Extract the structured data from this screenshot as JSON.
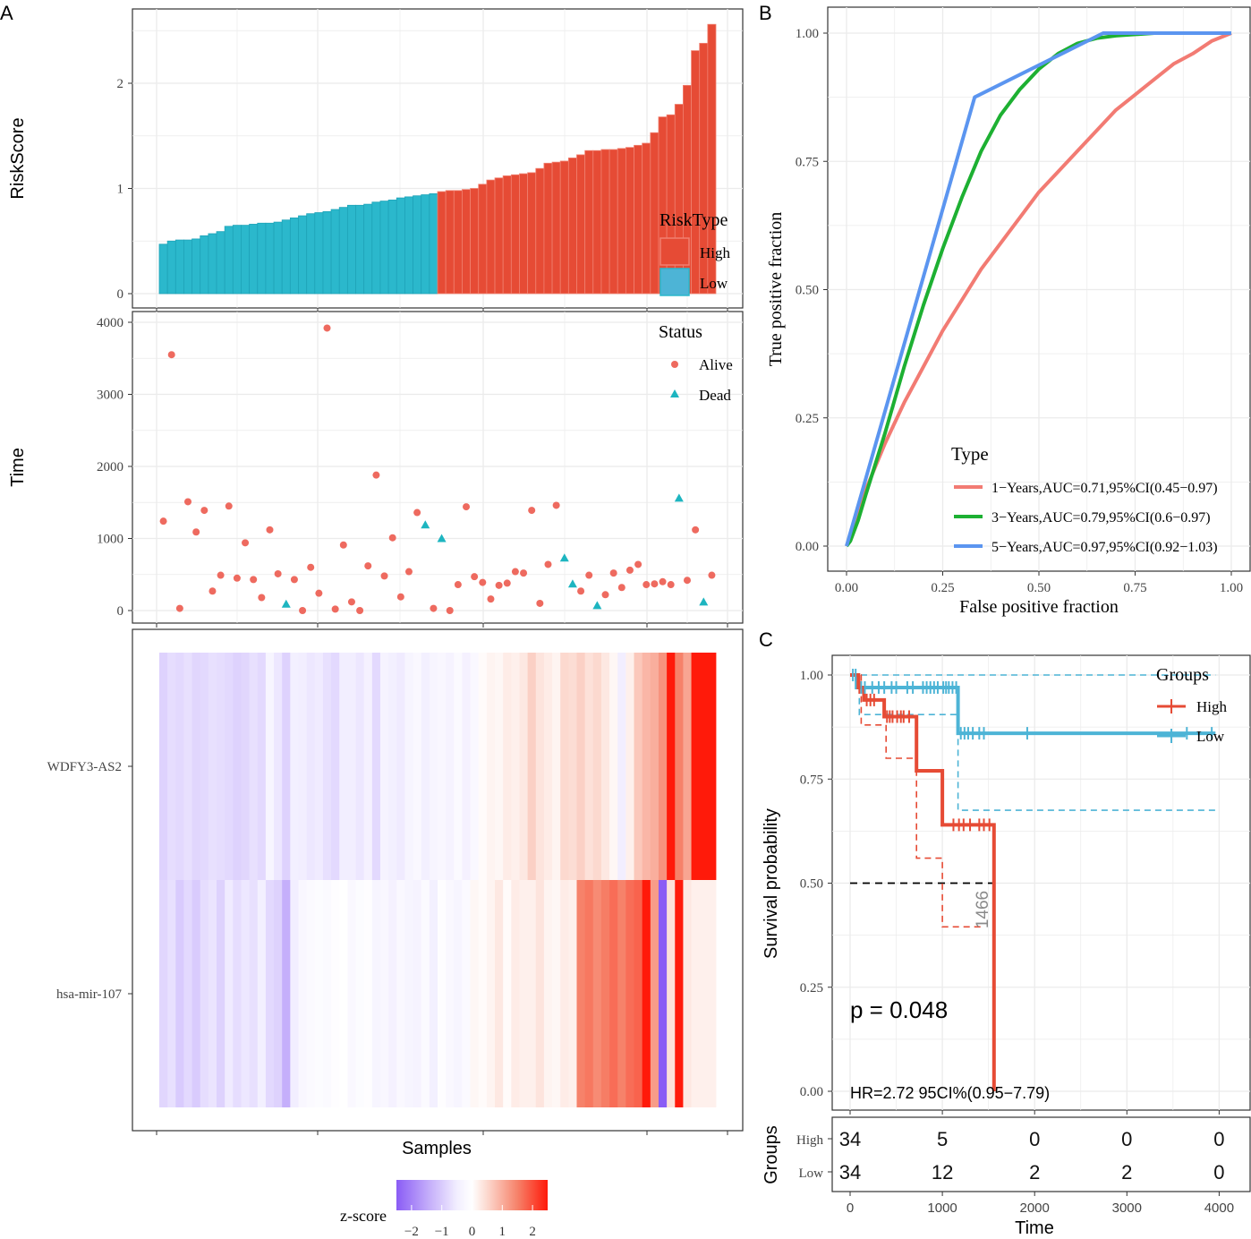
{
  "panel_labels": {
    "a": "A",
    "b": "B",
    "c": "C"
  },
  "colors": {
    "high": "#E64B35",
    "low": "#2BB8CC",
    "alive": "#EE6A5F",
    "dead": "#1DB5C0",
    "roc1": "#F27B73",
    "roc3": "#1DB032",
    "roc5": "#5B95F0",
    "km_high": "#E64B35",
    "km_low": "#4DB4D6",
    "grid": "#EBEBEB"
  },
  "chart_data": [
    {
      "id": "riskscore",
      "type": "bar",
      "title": "",
      "xlabel": "",
      "ylabel": "RiskScore",
      "ylim": [
        0,
        2.7
      ],
      "yticks": [
        0,
        1,
        2
      ],
      "legend": {
        "title": "RiskType",
        "entries": [
          "High",
          "Low"
        ],
        "position": "bottom-right"
      },
      "groups": [
        "Low",
        "Low",
        "Low",
        "Low",
        "Low",
        "Low",
        "Low",
        "Low",
        "Low",
        "Low",
        "Low",
        "Low",
        "Low",
        "Low",
        "Low",
        "Low",
        "Low",
        "Low",
        "Low",
        "Low",
        "Low",
        "Low",
        "Low",
        "Low",
        "Low",
        "Low",
        "Low",
        "Low",
        "Low",
        "Low",
        "Low",
        "Low",
        "Low",
        "Low",
        "High",
        "High",
        "High",
        "High",
        "High",
        "High",
        "High",
        "High",
        "High",
        "High",
        "High",
        "High",
        "High",
        "High",
        "High",
        "High",
        "High",
        "High",
        "High",
        "High",
        "High",
        "High",
        "High",
        "High",
        "High",
        "High",
        "High",
        "High",
        "High",
        "High",
        "High",
        "High",
        "High",
        "High"
      ],
      "values": [
        0.47,
        0.5,
        0.51,
        0.51,
        0.52,
        0.55,
        0.57,
        0.59,
        0.64,
        0.65,
        0.65,
        0.66,
        0.67,
        0.67,
        0.68,
        0.7,
        0.72,
        0.74,
        0.76,
        0.77,
        0.78,
        0.8,
        0.82,
        0.84,
        0.84,
        0.85,
        0.87,
        0.88,
        0.89,
        0.91,
        0.92,
        0.93,
        0.94,
        0.95,
        0.97,
        0.98,
        0.98,
        0.99,
        1.0,
        1.04,
        1.08,
        1.1,
        1.12,
        1.13,
        1.14,
        1.15,
        1.19,
        1.24,
        1.25,
        1.26,
        1.29,
        1.32,
        1.36,
        1.36,
        1.37,
        1.37,
        1.38,
        1.39,
        1.41,
        1.43,
        1.53,
        1.68,
        1.7,
        1.8,
        1.98,
        2.31,
        2.38,
        2.56
      ]
    },
    {
      "id": "survival-time",
      "type": "scatter",
      "xlabel": "",
      "ylabel": "Time",
      "ylim": [
        0,
        4000
      ],
      "yticks": [
        0,
        1000,
        2000,
        3000,
        4000
      ],
      "legend": {
        "title": "Status",
        "entries": [
          "Alive",
          "Dead"
        ],
        "position": "top-right"
      },
      "points": [
        {
          "x": 1,
          "y": 1240,
          "s": "Alive"
        },
        {
          "x": 2,
          "y": 3550,
          "s": "Alive"
        },
        {
          "x": 3,
          "y": 30,
          "s": "Alive"
        },
        {
          "x": 4,
          "y": 1510,
          "s": "Alive"
        },
        {
          "x": 5,
          "y": 1090,
          "s": "Alive"
        },
        {
          "x": 6,
          "y": 1390,
          "s": "Alive"
        },
        {
          "x": 7,
          "y": 270,
          "s": "Alive"
        },
        {
          "x": 8,
          "y": 490,
          "s": "Alive"
        },
        {
          "x": 9,
          "y": 1450,
          "s": "Alive"
        },
        {
          "x": 10,
          "y": 450,
          "s": "Alive"
        },
        {
          "x": 11,
          "y": 940,
          "s": "Alive"
        },
        {
          "x": 12,
          "y": 430,
          "s": "Alive"
        },
        {
          "x": 13,
          "y": 180,
          "s": "Alive"
        },
        {
          "x": 14,
          "y": 1120,
          "s": "Alive"
        },
        {
          "x": 15,
          "y": 510,
          "s": "Alive"
        },
        {
          "x": 16,
          "y": 90,
          "s": "Dead"
        },
        {
          "x": 17,
          "y": 430,
          "s": "Alive"
        },
        {
          "x": 18,
          "y": 0,
          "s": "Alive"
        },
        {
          "x": 19,
          "y": 600,
          "s": "Alive"
        },
        {
          "x": 20,
          "y": 240,
          "s": "Alive"
        },
        {
          "x": 21,
          "y": 3920,
          "s": "Alive"
        },
        {
          "x": 22,
          "y": 20,
          "s": "Alive"
        },
        {
          "x": 23,
          "y": 910,
          "s": "Alive"
        },
        {
          "x": 24,
          "y": 120,
          "s": "Alive"
        },
        {
          "x": 25,
          "y": 0,
          "s": "Alive"
        },
        {
          "x": 26,
          "y": 620,
          "s": "Alive"
        },
        {
          "x": 27,
          "y": 1880,
          "s": "Alive"
        },
        {
          "x": 28,
          "y": 480,
          "s": "Alive"
        },
        {
          "x": 29,
          "y": 1010,
          "s": "Alive"
        },
        {
          "x": 30,
          "y": 190,
          "s": "Alive"
        },
        {
          "x": 31,
          "y": 540,
          "s": "Alive"
        },
        {
          "x": 32,
          "y": 1360,
          "s": "Alive"
        },
        {
          "x": 33,
          "y": 1190,
          "s": "Dead"
        },
        {
          "x": 34,
          "y": 30,
          "s": "Alive"
        },
        {
          "x": 35,
          "y": 1000,
          "s": "Dead"
        },
        {
          "x": 36,
          "y": 0,
          "s": "Alive"
        },
        {
          "x": 37,
          "y": 360,
          "s": "Alive"
        },
        {
          "x": 38,
          "y": 1440,
          "s": "Alive"
        },
        {
          "x": 39,
          "y": 470,
          "s": "Alive"
        },
        {
          "x": 40,
          "y": 390,
          "s": "Alive"
        },
        {
          "x": 41,
          "y": 160,
          "s": "Alive"
        },
        {
          "x": 42,
          "y": 350,
          "s": "Alive"
        },
        {
          "x": 43,
          "y": 380,
          "s": "Alive"
        },
        {
          "x": 44,
          "y": 540,
          "s": "Alive"
        },
        {
          "x": 45,
          "y": 520,
          "s": "Alive"
        },
        {
          "x": 46,
          "y": 1390,
          "s": "Alive"
        },
        {
          "x": 47,
          "y": 100,
          "s": "Alive"
        },
        {
          "x": 48,
          "y": 640,
          "s": "Alive"
        },
        {
          "x": 49,
          "y": 1460,
          "s": "Alive"
        },
        {
          "x": 50,
          "y": 730,
          "s": "Dead"
        },
        {
          "x": 51,
          "y": 370,
          "s": "Dead"
        },
        {
          "x": 52,
          "y": 270,
          "s": "Alive"
        },
        {
          "x": 53,
          "y": 490,
          "s": "Alive"
        },
        {
          "x": 54,
          "y": 70,
          "s": "Dead"
        },
        {
          "x": 55,
          "y": 220,
          "s": "Alive"
        },
        {
          "x": 56,
          "y": 520,
          "s": "Alive"
        },
        {
          "x": 57,
          "y": 320,
          "s": "Alive"
        },
        {
          "x": 58,
          "y": 560,
          "s": "Alive"
        },
        {
          "x": 59,
          "y": 640,
          "s": "Alive"
        },
        {
          "x": 60,
          "y": 360,
          "s": "Alive"
        },
        {
          "x": 61,
          "y": 370,
          "s": "Alive"
        },
        {
          "x": 62,
          "y": 400,
          "s": "Alive"
        },
        {
          "x": 63,
          "y": 360,
          "s": "Alive"
        },
        {
          "x": 64,
          "y": 1560,
          "s": "Dead"
        },
        {
          "x": 65,
          "y": 420,
          "s": "Alive"
        },
        {
          "x": 66,
          "y": 1120,
          "s": "Alive"
        },
        {
          "x": 67,
          "y": 120,
          "s": "Dead"
        },
        {
          "x": 68,
          "y": 490,
          "s": "Alive"
        }
      ]
    },
    {
      "id": "heatmap",
      "type": "heatmap",
      "xlabel": "Samples",
      "rows": [
        "WDFY3-AS2",
        "hsa-mir-107"
      ],
      "scale": {
        "title": "z-score",
        "ticks": [
          "-2",
          "-1",
          "0",
          "1",
          "2"
        ],
        "range": [
          -2.5,
          2.5
        ]
      },
      "values": [
        [
          -0.9,
          -0.75,
          -0.8,
          -0.7,
          -0.85,
          -0.8,
          -0.7,
          -0.75,
          -0.8,
          -0.9,
          -0.85,
          -0.7,
          -0.8,
          -0.3,
          -0.6,
          -0.9,
          -0.45,
          -0.5,
          -0.6,
          -0.55,
          -0.7,
          -0.8,
          -0.5,
          -0.5,
          -0.6,
          -0.4,
          -0.8,
          -0.35,
          -0.45,
          -0.55,
          -0.3,
          -0.2,
          -0.45,
          -0.3,
          -0.25,
          -0.35,
          -0.15,
          -0.4,
          -0.2,
          0.05,
          0.15,
          0.1,
          0.25,
          0.2,
          0.3,
          0.6,
          0.35,
          0.25,
          0.15,
          0.5,
          0.45,
          0.6,
          0.4,
          0.5,
          0.3,
          0.1,
          -0.5,
          0.2,
          0.7,
          0.9,
          1.0,
          1.3,
          2.5,
          1.5,
          1.1,
          2.8,
          2.8,
          2.8
        ],
        [
          -0.85,
          -0.7,
          -1.0,
          -0.8,
          -1.0,
          -0.75,
          -0.65,
          -0.9,
          -0.55,
          -0.75,
          -0.6,
          -0.7,
          -0.45,
          -0.8,
          -0.9,
          -1.4,
          -0.5,
          -0.25,
          -0.15,
          -0.1,
          -0.15,
          -0.05,
          0.0,
          -0.2,
          -0.1,
          -0.05,
          -0.3,
          -0.25,
          -0.4,
          -0.2,
          -0.3,
          -0.35,
          -0.15,
          -0.45,
          -0.05,
          -0.2,
          -0.3,
          -0.15,
          0.1,
          0.05,
          0.15,
          0.3,
          0.05,
          0.25,
          0.2,
          0.2,
          0.35,
          0.15,
          0.1,
          0.25,
          0.2,
          1.5,
          1.6,
          1.4,
          1.55,
          1.7,
          1.5,
          1.7,
          1.8,
          2.6,
          1.2,
          -2.5,
          0.4,
          3.0,
          0.3,
          0.2,
          0.2,
          0.2
        ]
      ]
    },
    {
      "id": "roc",
      "type": "line",
      "xlabel": "False positive fraction",
      "ylabel": "True positive fraction",
      "xlim": [
        0,
        1
      ],
      "ylim": [
        0,
        1
      ],
      "xticks": [
        "0.00",
        "0.25",
        "0.50",
        "0.75",
        "1.00"
      ],
      "yticks": [
        "0.00",
        "0.25",
        "0.50",
        "0.75",
        "1.00"
      ],
      "legend": {
        "title": "Type",
        "position": "bottom-right"
      },
      "series": [
        {
          "name": "1−Years,AUC=0.71,95%CI(0.45−0.97)",
          "x": [
            0,
            0.05,
            0.1,
            0.15,
            0.2,
            0.25,
            0.3,
            0.35,
            0.4,
            0.45,
            0.5,
            0.55,
            0.6,
            0.65,
            0.7,
            0.75,
            0.8,
            0.85,
            0.9,
            0.95,
            1
          ],
          "y": [
            0,
            0.11,
            0.2,
            0.28,
            0.35,
            0.42,
            0.48,
            0.54,
            0.59,
            0.64,
            0.69,
            0.73,
            0.77,
            0.81,
            0.85,
            0.88,
            0.91,
            0.94,
            0.96,
            0.985,
            1
          ]
        },
        {
          "name": "3−Years,AUC=0.79,95%CI(0.6−0.97)",
          "x": [
            0,
            0.01,
            0.03,
            0.05,
            0.1,
            0.15,
            0.2,
            0.25,
            0.3,
            0.35,
            0.4,
            0.45,
            0.5,
            0.55,
            0.6,
            0.65,
            0.7,
            0.8,
            0.9,
            1
          ],
          "y": [
            0,
            0.01,
            0.05,
            0.1,
            0.22,
            0.35,
            0.47,
            0.58,
            0.68,
            0.77,
            0.84,
            0.89,
            0.93,
            0.96,
            0.98,
            0.99,
            0.995,
            1,
            1,
            1
          ]
        },
        {
          "name": "5−Years,AUC=0.97,95%CI(0.92−1.03)",
          "x": [
            0,
            0.333,
            0.667,
            1
          ],
          "y": [
            0,
            0.875,
            1,
            1
          ]
        }
      ]
    },
    {
      "id": "kaplan-meier",
      "type": "line",
      "xlabel": "Time",
      "ylabel": "Survival probability",
      "xlim": [
        0,
        4000
      ],
      "ylim": [
        0,
        1
      ],
      "xticks": [
        0,
        1000,
        2000,
        3000,
        4000
      ],
      "yticks": [
        "0.00",
        "0.25",
        "0.50",
        "0.75",
        "1.00"
      ],
      "legend": {
        "title": "Groups",
        "entries": [
          "High",
          "Low"
        ],
        "position": "top-right"
      },
      "annotations": {
        "p_value": "p = 0.048",
        "hr": "HR=2.72 95CI%(0.95−7.79)",
        "median": "1466"
      },
      "series": [
        {
          "name": "High",
          "steps": [
            [
              0,
              1.0
            ],
            [
              90,
              0.97
            ],
            [
              150,
              0.94
            ],
            [
              370,
              0.9
            ],
            [
              720,
              0.77
            ],
            [
              1000,
              0.64
            ],
            [
              1560,
              0.64
            ],
            [
              1560,
              0.0
            ]
          ],
          "ci_lower": [
            [
              0,
              1.0
            ],
            [
              120,
              0.88
            ],
            [
              390,
              0.8
            ],
            [
              720,
              0.56
            ],
            [
              1000,
              0.395
            ],
            [
              1460,
              0.395
            ]
          ],
          "censor": [
            100,
            180,
            220,
            260,
            400,
            430,
            460,
            510,
            550,
            580,
            640,
            1120,
            1180,
            1230,
            1300,
            1400,
            1450,
            1510
          ]
        },
        {
          "name": "Low",
          "steps": [
            [
              0,
              1.0
            ],
            [
              70,
              0.97
            ],
            [
              1170,
              0.97
            ],
            [
              1170,
              0.86
            ],
            [
              3960,
              0.86
            ]
          ],
          "ci_upper": [
            [
              0,
              1.0
            ],
            [
              3960,
              1.0
            ]
          ],
          "ci_lower": [
            [
              0,
              1.0
            ],
            [
              100,
              0.905
            ],
            [
              1170,
              0.905
            ],
            [
              1170,
              0.675
            ],
            [
              3960,
              0.675
            ]
          ],
          "censor": [
            30,
            60,
            120,
            160,
            240,
            310,
            370,
            450,
            500,
            620,
            680,
            790,
            830,
            870,
            910,
            950,
            1010,
            1040,
            1070,
            1110,
            1150,
            1200,
            1240,
            1280,
            1330,
            1400,
            1450,
            1920,
            3650,
            3920
          ]
        }
      ],
      "risk_table": {
        "title": "Groups",
        "rows": [
          "High",
          "Low"
        ],
        "times": [
          0,
          1000,
          2000,
          3000,
          4000
        ],
        "values": [
          [
            "34",
            "5",
            "0",
            "0",
            "0"
          ],
          [
            "34",
            "12",
            "2",
            "2",
            "0"
          ]
        ]
      }
    }
  ]
}
